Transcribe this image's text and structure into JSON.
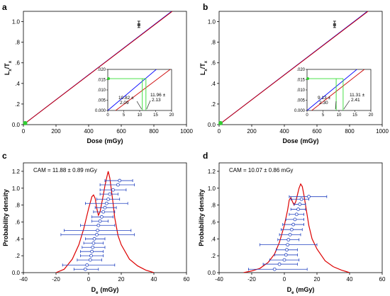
{
  "chart_data": [
    {
      "panel": "a",
      "type": "line",
      "xlabel_main": "Dose",
      "xlabel_unit": "(mGy)",
      "ylabel_main": "L",
      "ylabel_sub1": "x",
      "ylabel_sep": "/T",
      "ylabel_sub2": "x",
      "xlim": [
        0,
        1000
      ],
      "ylim": [
        0,
        1.1
      ],
      "xticks": [
        "0",
        "200",
        "400",
        "600",
        "800",
        "1000"
      ],
      "yticks": [
        "0.0",
        ".2",
        ".4",
        ".6",
        ".8",
        "1.0"
      ],
      "series": [
        {
          "color": "#0000ff",
          "x": [
            0,
            1000
          ],
          "y": [
            0.0,
            1.21
          ]
        },
        {
          "color": "#cc0000",
          "x": [
            0,
            1000
          ],
          "y": [
            0.0,
            1.205
          ]
        }
      ],
      "regen_point": {
        "x": 708,
        "y": 0.97
      },
      "natural_point": {
        "x": 11,
        "y": 0.015
      },
      "inset": {
        "xlim": [
          0,
          20
        ],
        "ylim": [
          0,
          0.02
        ],
        "xticks": [
          "0",
          "5",
          "10",
          "15",
          "20"
        ],
        "yticks": [
          "0.000",
          ".005",
          ".010",
          ".015",
          ".020"
        ],
        "blue_line": {
          "x": [
            0,
            20
          ],
          "y": [
            0.0,
            0.0263
          ]
        },
        "red_line": {
          "x": [
            0,
            20
          ],
          "y": [
            -0.0029,
            0.0205
          ]
        },
        "natural_y": 0.0155,
        "de_blue": 10.82,
        "de_red": 11.96,
        "ann1_a": "10.82 ±",
        "ann1_b": "2.09",
        "ann2_a": "11.96 ±",
        "ann2_b": "2.13"
      }
    },
    {
      "panel": "b",
      "type": "line",
      "xlabel_main": "Dose",
      "xlabel_unit": "(mGy)",
      "ylabel_main": "L",
      "ylabel_sub1": "x",
      "ylabel_sep": "/T",
      "ylabel_sub2": "x",
      "xlim": [
        0,
        1000
      ],
      "ylim": [
        0,
        1.1
      ],
      "xticks": [
        "0",
        "200",
        "400",
        "600",
        "800",
        "1000"
      ],
      "yticks": [
        "0.0",
        ".2",
        ".4",
        ".6",
        ".8",
        "1.0"
      ],
      "series": [
        {
          "color": "#0000ff",
          "x": [
            0,
            1000
          ],
          "y": [
            0.0,
            1.21
          ]
        },
        {
          "color": "#cc0000",
          "x": [
            0,
            1000
          ],
          "y": [
            0.0,
            1.205
          ]
        }
      ],
      "regen_point": {
        "x": 708,
        "y": 0.97
      },
      "natural_point": {
        "x": 9,
        "y": 0.015
      },
      "inset": {
        "xlim": [
          0,
          20
        ],
        "ylim": [
          0,
          0.02
        ],
        "xticks": [
          "0",
          "5",
          "10",
          "15",
          "20"
        ],
        "yticks": [
          "0.000",
          ".005",
          ".010",
          ".015",
          ".020"
        ],
        "blue_line": {
          "x": [
            0,
            20
          ],
          "y": [
            0.0,
            0.0256
          ]
        },
        "red_line": {
          "x": [
            0,
            20
          ],
          "y": [
            -0.0018,
            0.0225
          ]
        },
        "natural_y": 0.0155,
        "de_blue": 9.13,
        "de_red": 11.31,
        "ann1_a": "9.13 ±",
        "ann1_b": "2.30",
        "ann2_a": "11.31 ±",
        "ann2_b": "2.41"
      }
    },
    {
      "panel": "c",
      "type": "scatter",
      "xlabel_main": "D",
      "xlabel_sub": "e",
      "xlabel_unit": "(mGy)",
      "ylabel": "Probability density",
      "xlim": [
        -40,
        60
      ],
      "ylim": [
        0,
        1.3
      ],
      "xticks": [
        "-40",
        "-20",
        "0",
        "20",
        "40",
        "60"
      ],
      "yticks": [
        "0.0",
        ".2",
        ".4",
        ".6",
        ".8",
        "1.0",
        "1.2"
      ],
      "cam_label": "CAM = 11.88 ± 0.89 mGy",
      "kde": {
        "color": "#dd0000",
        "x": [
          -20,
          -15,
          -10,
          -6,
          -3,
          0,
          2,
          3,
          4,
          5,
          6,
          7,
          8,
          9,
          10,
          11,
          12,
          13,
          14,
          15,
          16,
          18,
          20,
          25,
          30,
          35,
          40
        ],
        "y": [
          0.0,
          0.04,
          0.16,
          0.33,
          0.52,
          0.76,
          0.9,
          0.92,
          0.88,
          0.76,
          0.68,
          0.72,
          0.82,
          0.92,
          1.03,
          1.12,
          1.2,
          1.12,
          0.97,
          0.82,
          0.65,
          0.44,
          0.33,
          0.16,
          0.08,
          0.03,
          0.0
        ]
      },
      "points": [
        {
          "x": -2.0,
          "y": 0.04,
          "lo": -9.0,
          "hi": 6.0
        },
        {
          "x": -1.0,
          "y": 0.09,
          "lo": -16.0,
          "hi": 16.0
        },
        {
          "x": 1.0,
          "y": 0.15,
          "lo": -7.0,
          "hi": 8.0
        },
        {
          "x": 1.5,
          "y": 0.2,
          "lo": -5.0,
          "hi": 9.0
        },
        {
          "x": 2.0,
          "y": 0.25,
          "lo": -5.0,
          "hi": 9.0
        },
        {
          "x": 2.5,
          "y": 0.3,
          "lo": -4.0,
          "hi": 10.0
        },
        {
          "x": 3.0,
          "y": 0.35,
          "lo": -3.0,
          "hi": 9.0
        },
        {
          "x": 3.5,
          "y": 0.4,
          "lo": -2.0,
          "hi": 10.0
        },
        {
          "x": 5.0,
          "y": 0.45,
          "lo": -17.0,
          "hi": 28.0
        },
        {
          "x": 5.5,
          "y": 0.5,
          "lo": -15.0,
          "hi": 26.0
        },
        {
          "x": 6.0,
          "y": 0.56,
          "lo": -5.0,
          "hi": 16.0
        },
        {
          "x": 7.0,
          "y": 0.61,
          "lo": 2.0,
          "hi": 12.0
        },
        {
          "x": 8.0,
          "y": 0.66,
          "lo": 2.0,
          "hi": 15.0
        },
        {
          "x": 9.0,
          "y": 0.72,
          "lo": 3.0,
          "hi": 16.0
        },
        {
          "x": 10.0,
          "y": 0.77,
          "lo": 4.0,
          "hi": 17.0
        },
        {
          "x": 11.0,
          "y": 0.82,
          "lo": -2.0,
          "hi": 24.0
        },
        {
          "x": 12.0,
          "y": 0.87,
          "lo": 5.0,
          "hi": 19.0
        },
        {
          "x": 13.0,
          "y": 0.93,
          "lo": 7.0,
          "hi": 18.0
        },
        {
          "x": 15.0,
          "y": 0.98,
          "lo": 7.0,
          "hi": 23.0
        },
        {
          "x": 18.0,
          "y": 1.04,
          "lo": 7.0,
          "hi": 28.0
        },
        {
          "x": 19.0,
          "y": 1.09,
          "lo": 10.0,
          "hi": 27.0
        }
      ]
    },
    {
      "panel": "d",
      "type": "scatter",
      "xlabel_main": "D",
      "xlabel_sub": "e",
      "xlabel_unit": "(mGy)",
      "ylabel": "Probability density",
      "xlim": [
        -40,
        60
      ],
      "ylim": [
        0,
        1.3
      ],
      "xticks": [
        "-40",
        "-20",
        "0",
        "20",
        "40",
        "60"
      ],
      "yticks": [
        "0.0",
        ".2",
        ".4",
        ".6",
        ".8",
        "1.0",
        "1.2"
      ],
      "cam_label": "CAM = 10.07 ± 0.86 mGy",
      "kde": {
        "color": "#dd0000",
        "x": [
          -25,
          -20,
          -15,
          -10,
          -6,
          -3,
          0,
          2,
          3,
          4,
          5,
          6,
          7,
          8,
          9,
          10,
          11,
          12,
          13,
          14,
          15,
          17,
          20,
          25,
          30,
          35,
          40
        ],
        "y": [
          0.0,
          0.02,
          0.05,
          0.12,
          0.22,
          0.36,
          0.56,
          0.74,
          0.86,
          0.89,
          0.84,
          0.8,
          0.84,
          0.92,
          1.0,
          1.05,
          1.02,
          0.92,
          0.8,
          0.68,
          0.56,
          0.4,
          0.28,
          0.14,
          0.07,
          0.03,
          0.0
        ]
      },
      "points": [
        {
          "x": -6.0,
          "y": 0.04,
          "lo": -22.0,
          "hi": 14.0
        },
        {
          "x": -3.0,
          "y": 0.1,
          "lo": -13.0,
          "hi": 8.0
        },
        {
          "x": 0.0,
          "y": 0.15,
          "lo": -9.0,
          "hi": 9.0
        },
        {
          "x": 1.0,
          "y": 0.21,
          "lo": -6.0,
          "hi": 8.0
        },
        {
          "x": 1.5,
          "y": 0.27,
          "lo": -5.0,
          "hi": 8.0
        },
        {
          "x": 2.0,
          "y": 0.33,
          "lo": -15.0,
          "hi": 20.0
        },
        {
          "x": 2.5,
          "y": 0.39,
          "lo": -4.0,
          "hi": 9.0
        },
        {
          "x": 3.5,
          "y": 0.45,
          "lo": -3.0,
          "hi": 10.0
        },
        {
          "x": 4.5,
          "y": 0.51,
          "lo": -2.0,
          "hi": 11.0
        },
        {
          "x": 5.5,
          "y": 0.57,
          "lo": -1.0,
          "hi": 12.0
        },
        {
          "x": 6.5,
          "y": 0.63,
          "lo": 1.0,
          "hi": 12.0
        },
        {
          "x": 7.5,
          "y": 0.69,
          "lo": 3.0,
          "hi": 12.0
        },
        {
          "x": 8.5,
          "y": 0.75,
          "lo": 4.0,
          "hi": 13.0
        },
        {
          "x": 9.5,
          "y": 0.81,
          "lo": 6.0,
          "hi": 13.0
        },
        {
          "x": 10.5,
          "y": 0.87,
          "lo": 4.0,
          "hi": 15.0
        },
        {
          "x": 15.0,
          "y": 0.9,
          "lo": 3.0,
          "hi": 26.0
        }
      ]
    }
  ]
}
